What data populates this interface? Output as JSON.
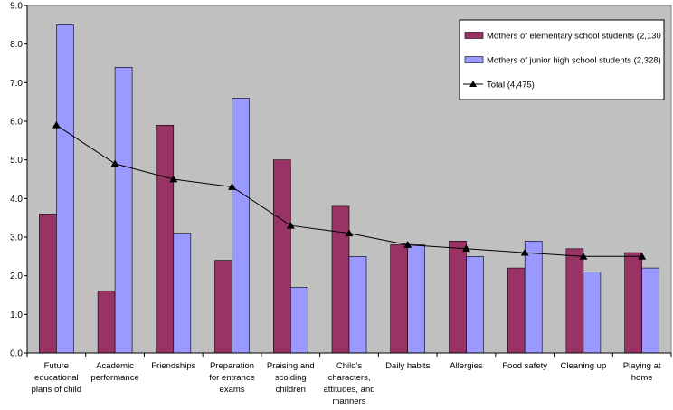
{
  "chart_data": {
    "type": "bar",
    "title": "",
    "xlabel": "",
    "ylabel": "",
    "ylim": [
      0,
      9
    ],
    "yticks": [
      "0.0",
      "1.0",
      "2.0",
      "3.0",
      "4.0",
      "5.0",
      "6.0",
      "7.0",
      "8.0",
      "9.0"
    ],
    "grid": false,
    "legend_position": "top-right",
    "plot_background": "#c0c0c0",
    "categories": [
      [
        "Future",
        "educational",
        "plans of child"
      ],
      [
        "Academic",
        "performance"
      ],
      [
        "Friendships"
      ],
      [
        "Preparation",
        "for entrance",
        "exams"
      ],
      [
        "Praising and",
        "scolding",
        "children"
      ],
      [
        "Child's",
        "characters,",
        "attitudes, and",
        "manners"
      ],
      [
        "Daily habits"
      ],
      [
        "Allergies"
      ],
      [
        "Food safety"
      ],
      [
        "Cleaning up"
      ],
      [
        "Playing at",
        "home"
      ]
    ],
    "series": [
      {
        "name": "Mothers of elementary school students (2,130",
        "kind": "bar",
        "color": "#993366",
        "values": [
          3.6,
          1.6,
          5.9,
          2.4,
          5.0,
          3.8,
          2.8,
          2.9,
          2.2,
          2.7,
          2.6
        ]
      },
      {
        "name": "Mothers of junior high school students (2,328)",
        "kind": "bar",
        "color": "#9999ff",
        "values": [
          8.5,
          7.4,
          3.1,
          6.6,
          1.7,
          2.5,
          2.8,
          2.5,
          2.9,
          2.1,
          2.2
        ]
      },
      {
        "name": "Total (4,475)",
        "kind": "line",
        "color": "#000000",
        "marker": "triangle",
        "values": [
          5.9,
          4.9,
          4.5,
          4.3,
          3.3,
          3.1,
          2.8,
          2.7,
          2.6,
          2.5,
          2.5
        ]
      }
    ]
  }
}
